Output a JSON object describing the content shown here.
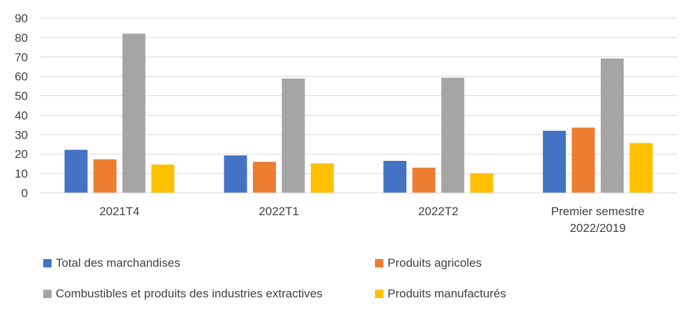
{
  "chart_data": {
    "type": "bar",
    "categories": [
      [
        "2021T4"
      ],
      [
        "2022T1"
      ],
      [
        "2022T2"
      ],
      [
        "Premier semestre",
        "2022/2019"
      ]
    ],
    "series": [
      {
        "name": "Total des marchandises",
        "color": "#4472C4",
        "values": [
          22.2,
          19.3,
          16.5,
          32.0
        ]
      },
      {
        "name": "Produits agricoles",
        "color": "#ED7D31",
        "values": [
          17.3,
          16.0,
          13.0,
          33.6
        ]
      },
      {
        "name": "Combustibles et produits des industries extractives",
        "color": "#A5A5A5",
        "values": [
          82.0,
          58.9,
          59.3,
          69.2
        ]
      },
      {
        "name": "Produits manufacturés",
        "color": "#FFC000",
        "values": [
          14.6,
          15.2,
          10.1,
          25.7
        ]
      }
    ],
    "ylim": [
      0,
      90
    ],
    "yticks": [
      0,
      10,
      20,
      30,
      40,
      50,
      60,
      70,
      80,
      90
    ],
    "grid": true,
    "legend_position": "bottom"
  }
}
